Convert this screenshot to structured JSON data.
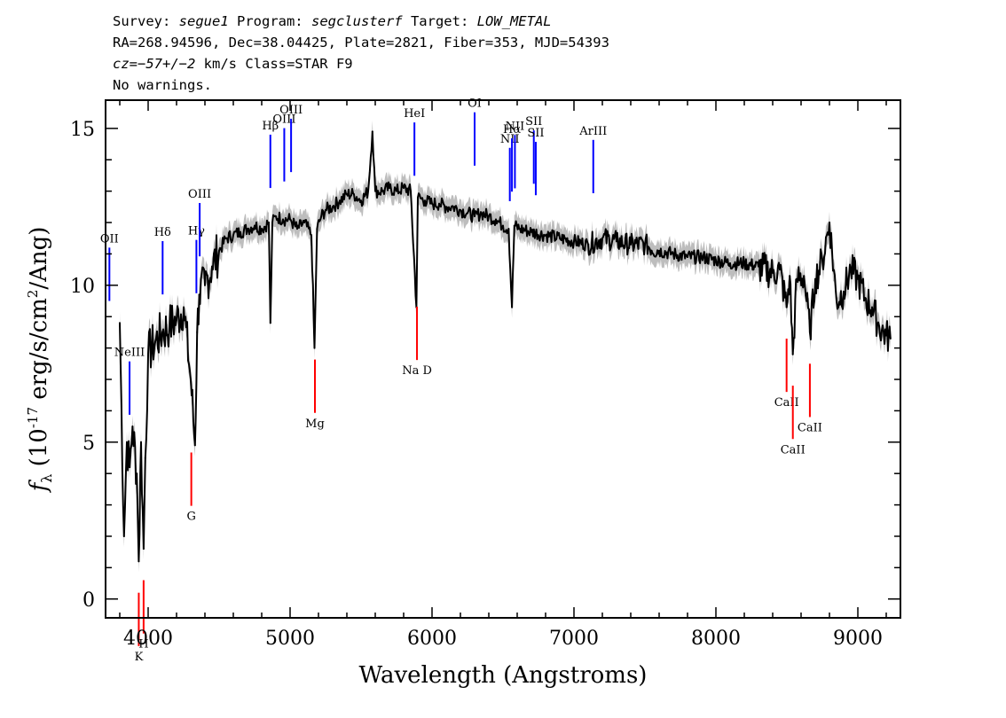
{
  "header": {
    "line1": {
      "survey_label": "Survey: ",
      "survey": "segue1",
      "program_label": " Program: ",
      "program": "segclusterf",
      "target_label": " Target: ",
      "target": "LOW_METAL"
    },
    "line2": "RA=268.94596, Dec=38.04425, Plate=2821, Fiber=353, MJD=54393",
    "line3": {
      "cz": "cz=−57+/−2",
      "rest": " km/s Class=STAR F9"
    },
    "line4": "No warnings."
  },
  "chart_data": {
    "type": "line",
    "xlabel": "Wavelength (Angstroms)",
    "ylabel": "f_λ (10^-17 erg/s/cm^2/Ang)",
    "xlim": [
      3700,
      9300
    ],
    "ylim": [
      -0.6,
      15.9
    ],
    "xticks": [
      4000,
      5000,
      6000,
      7000,
      8000,
      9000
    ],
    "yticks": [
      0,
      5,
      10,
      15
    ],
    "grid": false,
    "series": [
      {
        "color": "#000000",
        "error_color": "#bdbdbd",
        "x": [
          3800,
          3830,
          3850,
          3870,
          3890,
          3920,
          3934,
          3950,
          3968,
          3980,
          4000,
          4050,
          4100,
          4150,
          4200,
          4250,
          4300,
          4330,
          4345,
          4360,
          4400,
          4450,
          4500,
          4550,
          4600,
          4650,
          4700,
          4750,
          4800,
          4850,
          4861,
          4875,
          4900,
          4950,
          5000,
          5050,
          5100,
          5150,
          5172,
          5190,
          5220,
          5250,
          5300,
          5350,
          5400,
          5450,
          5500,
          5550,
          5580,
          5600,
          5650,
          5700,
          5750,
          5800,
          5850,
          5890,
          5900,
          5950,
          6000,
          6050,
          6100,
          6150,
          6200,
          6250,
          6300,
          6350,
          6400,
          6450,
          6500,
          6540,
          6563,
          6580,
          6620,
          6700,
          6800,
          6900,
          7000,
          7100,
          7200,
          7300,
          7400,
          7500,
          7600,
          7700,
          7800,
          7900,
          8000,
          8100,
          8200,
          8300,
          8400,
          8450,
          8498,
          8520,
          8542,
          8570,
          8620,
          8662,
          8700,
          8750,
          8800,
          8850,
          8900,
          8950,
          9000,
          9050,
          9100,
          9150,
          9200,
          9230
        ],
        "y": [
          8.8,
          2.0,
          5.0,
          4.2,
          5.5,
          4.0,
          1.2,
          5.0,
          1.6,
          4.5,
          7.8,
          8.2,
          8.5,
          8.7,
          8.9,
          9.3,
          7.0,
          4.9,
          8.5,
          9.7,
          10.0,
          10.6,
          11.1,
          11.5,
          11.6,
          11.7,
          11.8,
          11.9,
          11.8,
          12.0,
          8.8,
          12.0,
          12.2,
          12.1,
          12.1,
          11.8,
          12.0,
          11.6,
          8.0,
          11.8,
          12.2,
          12.4,
          12.5,
          12.7,
          12.9,
          12.9,
          12.7,
          13.0,
          14.9,
          13.0,
          13.0,
          13.1,
          13.0,
          13.1,
          13.0,
          9.3,
          12.8,
          12.7,
          12.6,
          12.6,
          12.5,
          12.5,
          12.4,
          12.3,
          12.2,
          12.3,
          12.2,
          12.1,
          11.9,
          11.8,
          9.3,
          11.9,
          11.8,
          11.7,
          11.6,
          11.5,
          11.4,
          11.3,
          11.5,
          11.4,
          11.3,
          11.3,
          11.1,
          11.0,
          10.9,
          10.9,
          10.8,
          10.7,
          10.7,
          10.6,
          10.4,
          10.5,
          9.3,
          10.3,
          7.8,
          10.2,
          10.3,
          8.5,
          10.2,
          10.8,
          12.0,
          9.5,
          9.8,
          10.5,
          10.2,
          9.6,
          9.3,
          8.7,
          8.4,
          8.3
        ]
      }
    ],
    "emission_lines": [
      {
        "label": "OII",
        "wavelength": 3727
      },
      {
        "label": "NeIII",
        "wavelength": 3869
      },
      {
        "label": "Hδ",
        "wavelength": 4102
      },
      {
        "label": "Hγ",
        "wavelength": 4340
      },
      {
        "label": "OIII",
        "wavelength": 4363
      },
      {
        "label": "Hβ",
        "wavelength": 4861
      },
      {
        "label": "OIII",
        "wavelength": 4959
      },
      {
        "label": "OIII",
        "wavelength": 5007
      },
      {
        "label": "HeI",
        "wavelength": 5876
      },
      {
        "label": "OI",
        "wavelength": 6300
      },
      {
        "label": "NII",
        "wavelength": 6548
      },
      {
        "label": "Hα",
        "wavelength": 6563
      },
      {
        "label": "NII",
        "wavelength": 6584
      },
      {
        "label": "SII",
        "wavelength": 6717
      },
      {
        "label": "SII",
        "wavelength": 6731
      },
      {
        "label": "ArIII",
        "wavelength": 7136
      }
    ],
    "absorption_lines": [
      {
        "label": "K",
        "wavelength": 3934
      },
      {
        "label": "H",
        "wavelength": 3968
      },
      {
        "label": "G",
        "wavelength": 4304
      },
      {
        "label": "Mg",
        "wavelength": 5175
      },
      {
        "label": "Na D",
        "wavelength": 5894
      },
      {
        "label": "CaII",
        "wavelength": 8498
      },
      {
        "label": "CaII",
        "wavelength": 8542
      },
      {
        "label": "CaII",
        "wavelength": 8662
      }
    ],
    "emission_color": "#0000ff",
    "absorption_color": "#ff0000"
  }
}
